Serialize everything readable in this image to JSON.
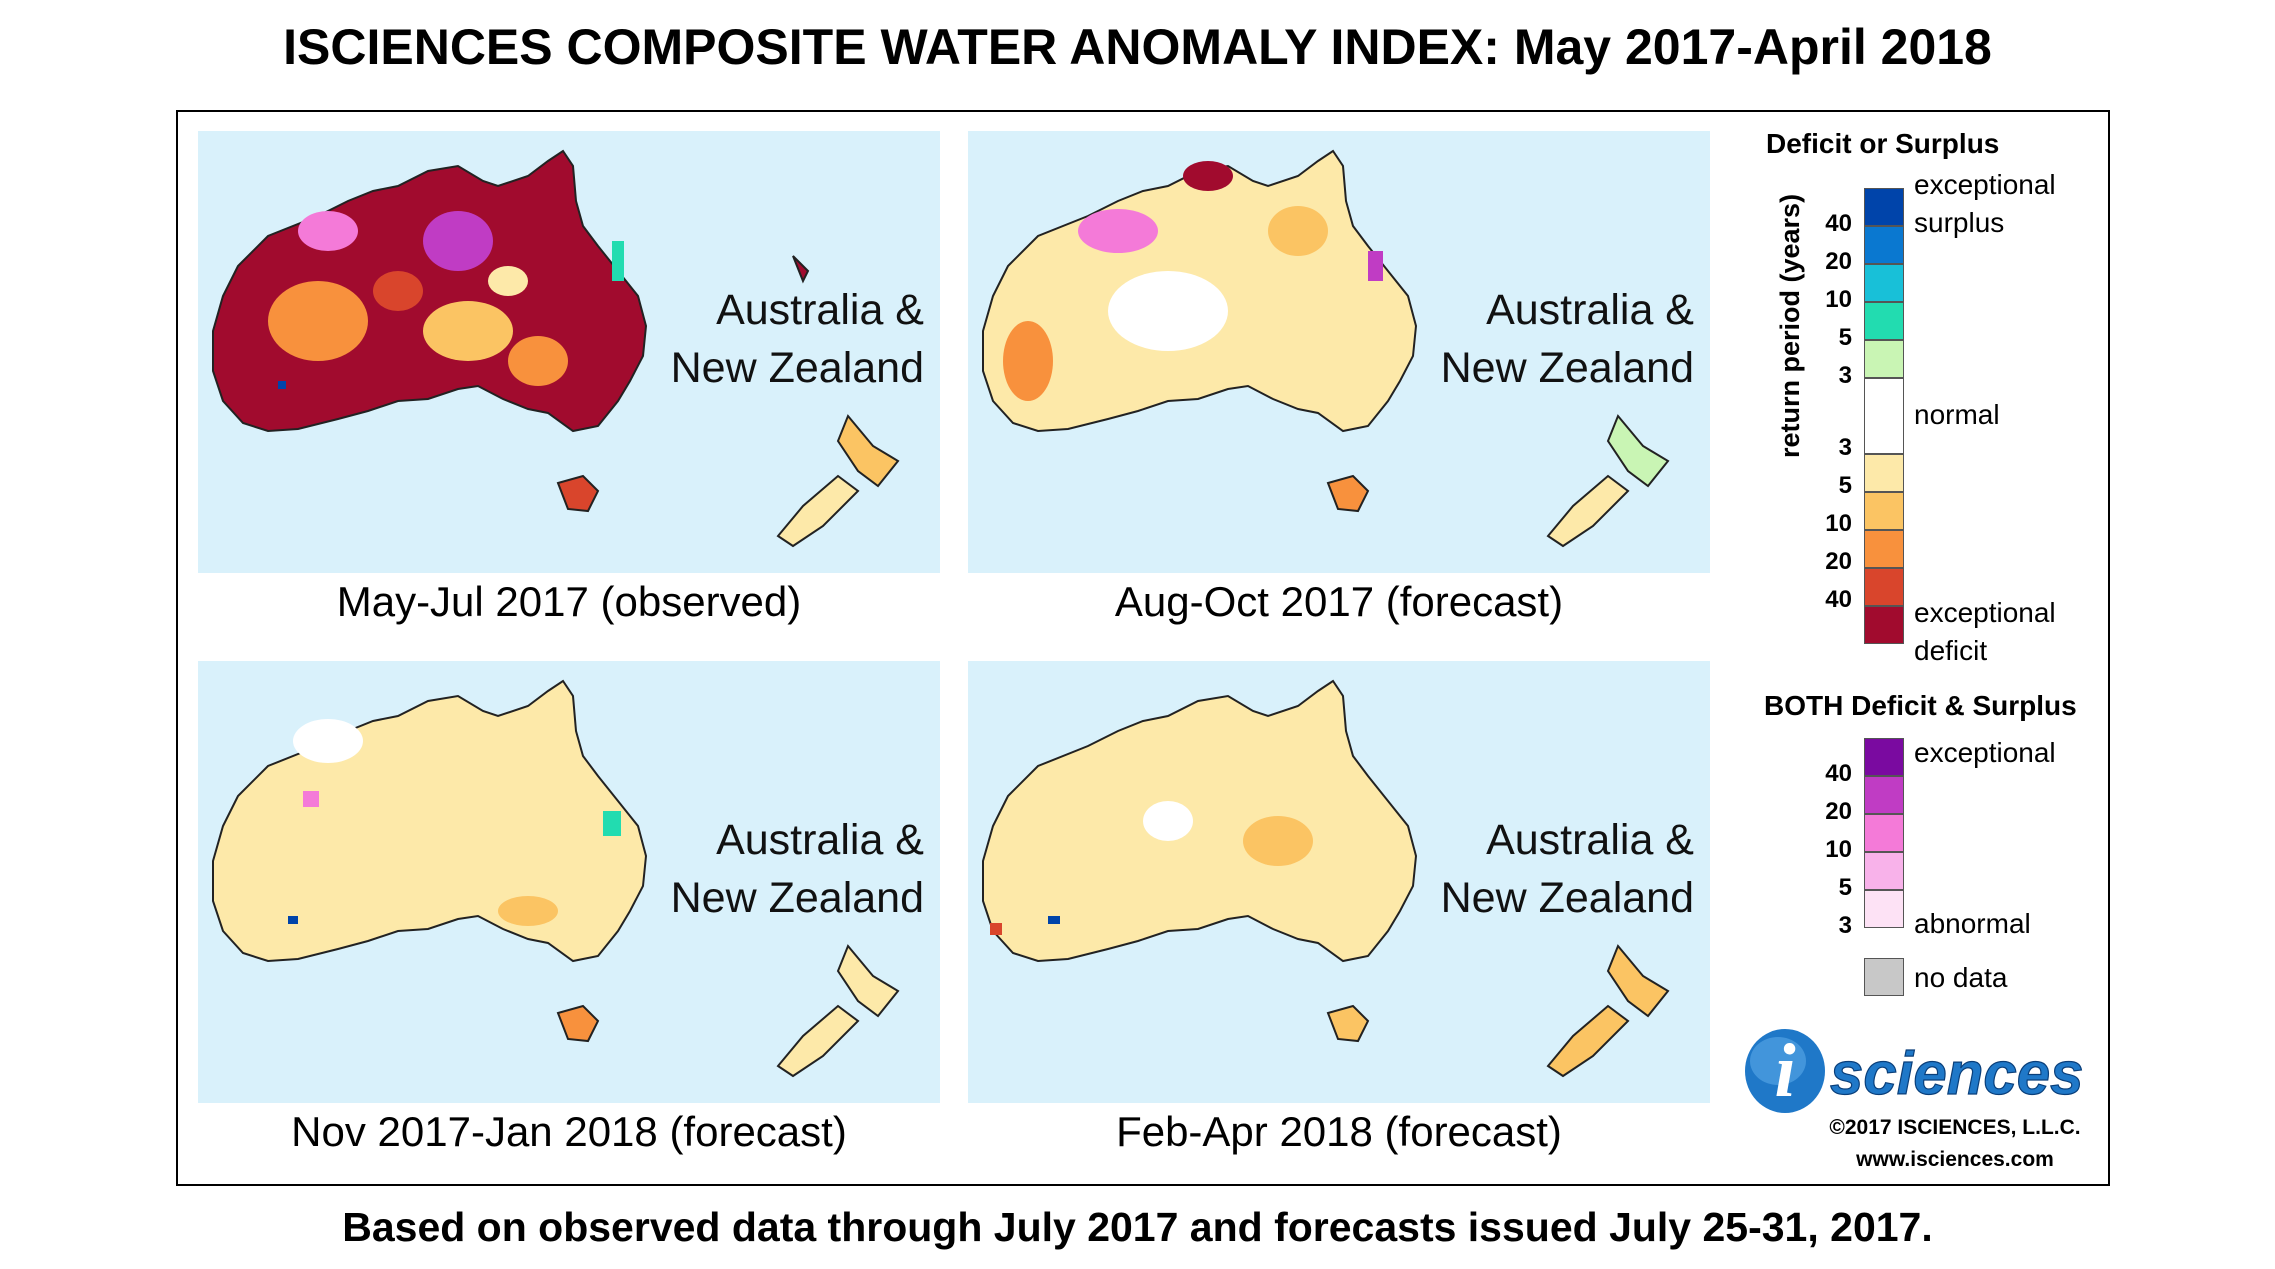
{
  "title": "ISCIENCES COMPOSITE WATER ANOMALY INDEX: May 2017-April 2018",
  "footer": "Based on observed data through July 2017 and forecasts issued July 25-31, 2017.",
  "colors": {
    "ocean": "#d9f1fb",
    "normal": "#ffffff",
    "coast": "#222222"
  },
  "panels": [
    {
      "id": "may-jul-2017",
      "caption": "May-Jul 2017 (observed)",
      "region_line1": "Australia &",
      "region_line2": "New Zealand",
      "dominant": "severe-deficit"
    },
    {
      "id": "aug-oct-2017",
      "caption": "Aug-Oct 2017 (forecast)",
      "region_line1": "Australia &",
      "region_line2": "New Zealand",
      "dominant": "moderate-deficit"
    },
    {
      "id": "nov-2017-jan-2018",
      "caption": "Nov 2017-Jan 2018 (forecast)",
      "region_line1": "Australia &",
      "region_line2": "New Zealand",
      "dominant": "mild-deficit"
    },
    {
      "id": "feb-apr-2018",
      "caption": "Feb-Apr 2018 (forecast)",
      "region_line1": "Australia &",
      "region_line2": "New Zealand",
      "dominant": "mild-deficit"
    }
  ],
  "legend": {
    "deficit_surplus_title": "Deficit or Surplus",
    "both_title": "BOTH Deficit & Surplus",
    "axis_label": "return period (years)",
    "exceptional_surplus_1": "exceptional",
    "exceptional_surplus_2": "surplus",
    "normal": "normal",
    "exceptional_deficit_1": "exceptional",
    "exceptional_deficit_2": "deficit",
    "both_exceptional": "exceptional",
    "both_abnormal": "abnormal",
    "no_data": "no data",
    "surplus_ticks": [
      "40",
      "20",
      "10",
      "5",
      "3"
    ],
    "deficit_ticks": [
      "3",
      "5",
      "10",
      "20",
      "40"
    ],
    "both_ticks": [
      "40",
      "20",
      "10",
      "5",
      "3"
    ],
    "surplus_colors": [
      "#0044aa",
      "#0a78d0",
      "#18c0d8",
      "#22dcb0",
      "#c9f5b4"
    ],
    "normal_color": "#ffffff",
    "deficit_colors": [
      "#fde9a9",
      "#fbc463",
      "#f8913d",
      "#d9452c",
      "#a10b2e"
    ],
    "both_colors": [
      "#7a0aa0",
      "#c03cc4",
      "#f47ad8",
      "#f8b2ea",
      "#fde2f5"
    ],
    "no_data_color": "#c8c8c8"
  },
  "logo": {
    "letter": "i",
    "word": "sciences"
  },
  "copyright": "©2017 ISCIENCES, L.L.C.",
  "website": "www.isciences.com"
}
